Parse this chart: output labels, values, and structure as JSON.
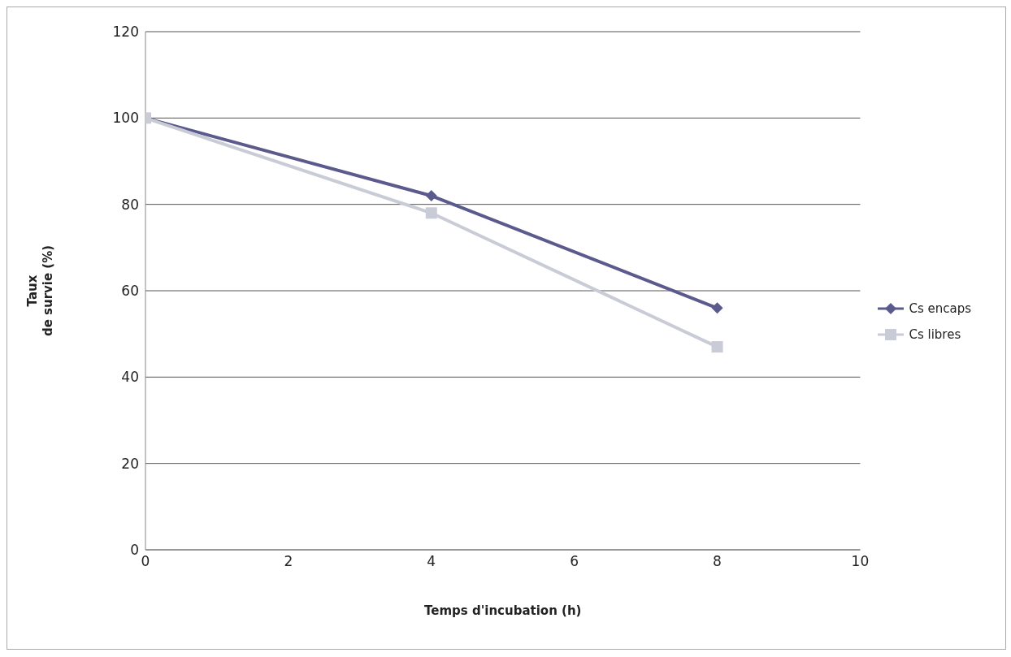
{
  "chart_data": {
    "type": "line",
    "xlabel": "Temps d'incubation (h)",
    "ylabel": "Taux de survie (%)",
    "xlim": [
      0,
      10
    ],
    "xticks": [
      0,
      2,
      4,
      6,
      8,
      10
    ],
    "ylim": [
      0,
      120
    ],
    "yticks": [
      0,
      20,
      40,
      60,
      80,
      100,
      120
    ],
    "grid": "y",
    "legend": "right",
    "x": [
      0,
      4,
      8
    ],
    "series": [
      {
        "name": "Cs encaps",
        "color": "#5b5a8c",
        "values": [
          100,
          82,
          56
        ],
        "marker": "diamond"
      },
      {
        "name": "Cs libres",
        "color": "#c9ccd6",
        "values": [
          100,
          78,
          47
        ],
        "marker": "square"
      }
    ]
  }
}
